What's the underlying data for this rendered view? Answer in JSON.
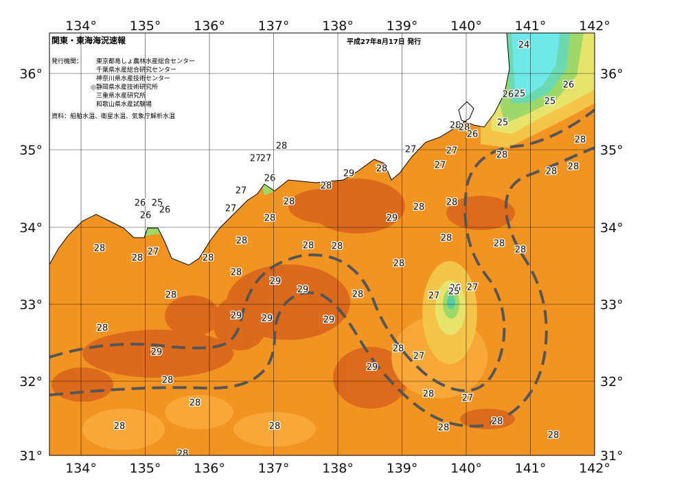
{
  "header": {
    "title": "関東・東海海況速報",
    "date": "平成27年8月17日 発行",
    "issuer_label": "発行機関：",
    "issuers": [
      "東京都島しょ農林水産総合センター",
      "千葉県水産総合研究センター",
      "神奈川県水産技術センター",
      "◎静岡県水産技術研究所",
      "三重県水産研究所",
      "和歌山県水産試験場"
    ],
    "source": "資料：船舶水温、衛星水温、気象庁解析水温"
  },
  "map": {
    "lon_labels": [
      "134°",
      "135°",
      "136°",
      "137°",
      "138°",
      "139°",
      "140°",
      "141°",
      "142°"
    ],
    "lat_labels": [
      "36°",
      "35°",
      "34°",
      "33°",
      "32°",
      "31°"
    ],
    "contour_labels": [
      24,
      26,
      26,
      25,
      25,
      25,
      28,
      28,
      26,
      28,
      27,
      27,
      28,
      28,
      27,
      27,
      27,
      28,
      28,
      29,
      28,
      26,
      28,
      27,
      28,
      26,
      25,
      28,
      28,
      26,
      27,
      26,
      28,
      29,
      28,
      28,
      28,
      28,
      28,
      28,
      28,
      27,
      28,
      28,
      28,
      28,
      29,
      26,
      27,
      29,
      25,
      28,
      28,
      27,
      29,
      29,
      29,
      28,
      28,
      29,
      27,
      29,
      28,
      28,
      27,
      28,
      28,
      28,
      28,
      28,
      28,
      28
    ]
  }
}
